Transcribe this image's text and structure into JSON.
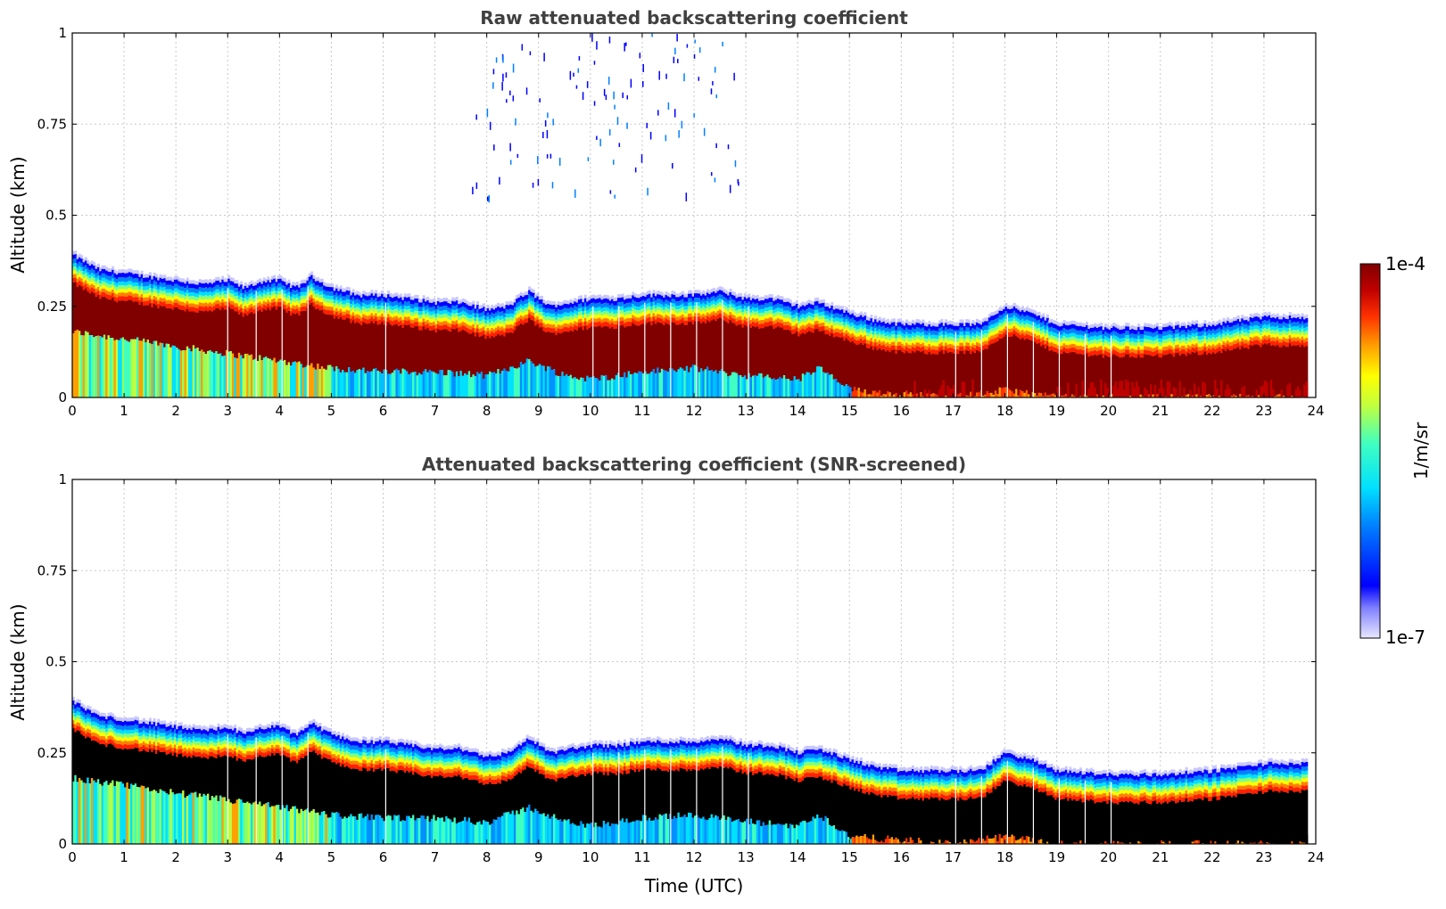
{
  "chart_data": [
    {
      "type": "heatmap",
      "title": "Raw attenuated backscattering coefficient",
      "xlabel": "",
      "ylabel": "Altitude (km)",
      "xlim": [
        0,
        24
      ],
      "ylim": [
        0,
        1
      ],
      "x_ticks": [
        "0",
        "1",
        "2",
        "3",
        "4",
        "5",
        "6",
        "7",
        "8",
        "9",
        "10",
        "11",
        "12",
        "13",
        "14",
        "15",
        "16",
        "17",
        "18",
        "19",
        "20",
        "21",
        "22",
        "23",
        "24"
      ],
      "y_ticks": [
        "0",
        "0.25",
        "0.5",
        "0.75",
        "1"
      ],
      "grid": true,
      "screened": false,
      "layer_top_km": [
        [
          0,
          0.4
        ],
        [
          0.5,
          0.36
        ],
        [
          1,
          0.35
        ],
        [
          1.5,
          0.34
        ],
        [
          2,
          0.33
        ],
        [
          2.5,
          0.32
        ],
        [
          3,
          0.33
        ],
        [
          3.3,
          0.31
        ],
        [
          3.7,
          0.33
        ],
        [
          4,
          0.33
        ],
        [
          4.3,
          0.31
        ],
        [
          4.6,
          0.34
        ],
        [
          5,
          0.31
        ],
        [
          5.5,
          0.29
        ],
        [
          6,
          0.29
        ],
        [
          6.5,
          0.28
        ],
        [
          7,
          0.27
        ],
        [
          7.5,
          0.27
        ],
        [
          8,
          0.25
        ],
        [
          8.4,
          0.26
        ],
        [
          8.8,
          0.3
        ],
        [
          9.2,
          0.26
        ],
        [
          9.6,
          0.27
        ],
        [
          10,
          0.28
        ],
        [
          10.5,
          0.28
        ],
        [
          11,
          0.29
        ],
        [
          11.5,
          0.29
        ],
        [
          12,
          0.29
        ],
        [
          12.5,
          0.3
        ],
        [
          13,
          0.28
        ],
        [
          13.5,
          0.28
        ],
        [
          14,
          0.26
        ],
        [
          14.4,
          0.27
        ],
        [
          15,
          0.24
        ],
        [
          15.5,
          0.22
        ],
        [
          16,
          0.21
        ],
        [
          17,
          0.21
        ],
        [
          17.5,
          0.21
        ],
        [
          18,
          0.26
        ],
        [
          18.5,
          0.24
        ],
        [
          19,
          0.21
        ],
        [
          20,
          0.2
        ],
        [
          21,
          0.2
        ],
        [
          22,
          0.21
        ],
        [
          23,
          0.23
        ],
        [
          23.8,
          0.23
        ]
      ],
      "layer_bottom_km": [
        [
          0,
          0.18
        ],
        [
          1,
          0.16
        ],
        [
          2,
          0.14
        ],
        [
          3,
          0.12
        ],
        [
          4,
          0.1
        ],
        [
          5,
          0.08
        ],
        [
          6,
          0.07
        ],
        [
          7,
          0.07
        ],
        [
          8,
          0.06
        ],
        [
          8.8,
          0.1
        ],
        [
          9.5,
          0.06
        ],
        [
          10,
          0.05
        ],
        [
          11,
          0.07
        ],
        [
          12,
          0.08
        ],
        [
          13,
          0.06
        ],
        [
          14,
          0.05
        ],
        [
          14.4,
          0.08
        ],
        [
          15,
          0.02
        ],
        [
          16,
          0.01
        ],
        [
          17,
          0.0
        ],
        [
          18,
          0.02
        ],
        [
          19,
          0.0
        ],
        [
          23.8,
          0.0
        ]
      ]
    },
    {
      "type": "heatmap",
      "title": "Attenuated backscattering coefficient (SNR-screened)",
      "xlabel": "Time (UTC)",
      "ylabel": "Altitude (km)",
      "xlim": [
        0,
        24
      ],
      "ylim": [
        0,
        1
      ],
      "x_ticks": [
        "0",
        "1",
        "2",
        "3",
        "4",
        "5",
        "6",
        "7",
        "8",
        "9",
        "10",
        "11",
        "12",
        "13",
        "14",
        "15",
        "16",
        "17",
        "18",
        "19",
        "20",
        "21",
        "22",
        "23",
        "24"
      ],
      "y_ticks": [
        "0",
        "0.25",
        "0.5",
        "0.75",
        "1"
      ],
      "grid": true,
      "screened": true,
      "layer_top_km": "same as panel 1",
      "layer_bottom_km": "same as panel 1"
    }
  ],
  "colorbar": {
    "label": "1/m/sr",
    "min_label": "1e-7",
    "max_label": "1e-4",
    "colormap": "jet",
    "scale": "log"
  }
}
